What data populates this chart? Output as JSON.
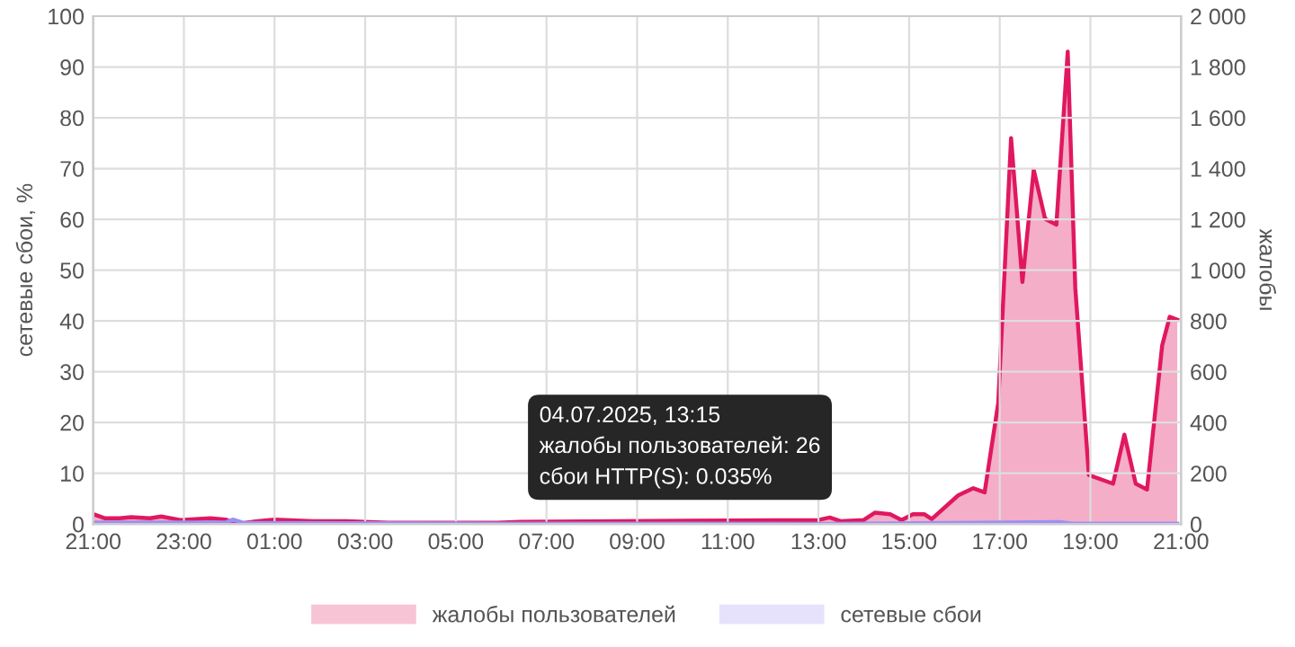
{
  "chart_data": {
    "type": "area",
    "ylabel": "сетевые сбои, %",
    "y2label": "жалобы",
    "xlim": [
      "2025-07-03T21:00",
      "2025-07-04T21:00"
    ],
    "xticks": [
      {
        "value": "2025-07-03T21:00",
        "label": "21:00"
      },
      {
        "value": "2025-07-03T23:00",
        "label": "23:00"
      },
      {
        "value": "2025-07-04T01:00",
        "label": "01:00"
      },
      {
        "value": "2025-07-04T03:00",
        "label": "03:00"
      },
      {
        "value": "2025-07-04T05:00",
        "label": "05:00"
      },
      {
        "value": "2025-07-04T07:00",
        "label": "07:00"
      },
      {
        "value": "2025-07-04T09:00",
        "label": "09:00"
      },
      {
        "value": "2025-07-04T11:00",
        "label": "11:00"
      },
      {
        "value": "2025-07-04T13:00",
        "label": "13:00"
      },
      {
        "value": "2025-07-04T15:00",
        "label": "15:00"
      },
      {
        "value": "2025-07-04T17:00",
        "label": "17:00"
      },
      {
        "value": "2025-07-04T19:00",
        "label": "19:00"
      },
      {
        "value": "2025-07-04T21:00",
        "label": "21:00"
      }
    ],
    "ylim": [
      0,
      100
    ],
    "yticks": [
      0,
      10,
      20,
      30,
      40,
      50,
      60,
      70,
      80,
      90,
      100
    ],
    "y2lim": [
      0,
      2000
    ],
    "y2ticks": [
      0,
      200,
      400,
      600,
      800,
      {
        "value": 1000,
        "label": "1 000"
      },
      {
        "value": 1200,
        "label": "1 200"
      },
      {
        "value": 1400,
        "label": "1 400"
      },
      {
        "value": 1600,
        "label": "1 600"
      },
      {
        "value": 1800,
        "label": "1 800"
      },
      {
        "value": 2000,
        "label": "2 000"
      }
    ],
    "grid": true,
    "legend": "bottom",
    "series": [
      {
        "name": "жалобы пользователей",
        "color": "#e0185f",
        "axis": "y2",
        "x": [
          "2025-07-03T21:00",
          "2025-07-03T21:15",
          "2025-07-03T21:35",
          "2025-07-03T21:50",
          "2025-07-03T22:15",
          "2025-07-03T22:30",
          "2025-07-03T22:55",
          "2025-07-03T23:35",
          "2025-07-03T23:55",
          "2025-07-04T00:10",
          "2025-07-04T00:35",
          "2025-07-04T01:00",
          "2025-07-04T01:50",
          "2025-07-04T02:35",
          "2025-07-04T03:30",
          "2025-07-04T04:10",
          "2025-07-04T05:00",
          "2025-07-04T05:55",
          "2025-07-04T06:25",
          "2025-07-04T13:00",
          "2025-07-04T13:15",
          "2025-07-04T13:30",
          "2025-07-04T14:00",
          "2025-07-04T14:15",
          "2025-07-04T14:35",
          "2025-07-04T14:50",
          "2025-07-04T15:05",
          "2025-07-04T15:20",
          "2025-07-04T15:30",
          "2025-07-04T16:05",
          "2025-07-04T16:25",
          "2025-07-04T16:40",
          "2025-07-04T16:58",
          "2025-07-04T17:15",
          "2025-07-04T17:30",
          "2025-07-04T17:45",
          "2025-07-04T18:00",
          "2025-07-04T18:15",
          "2025-07-04T18:30",
          "2025-07-04T18:40",
          "2025-07-04T18:58",
          "2025-07-04T19:30",
          "2025-07-04T19:45",
          "2025-07-04T20:00",
          "2025-07-04T20:15",
          "2025-07-04T20:35",
          "2025-07-04T20:45",
          "2025-07-04T20:55"
        ],
        "values": [
          39,
          23,
          23,
          27,
          23,
          30,
          16,
          23,
          18,
          0,
          11,
          18,
          11,
          11,
          5,
          5,
          5,
          5,
          9,
          16,
          26,
          11,
          16,
          45,
          39,
          16,
          39,
          39,
          20,
          113,
          141,
          125,
          476,
          1520,
          953,
          1395,
          1202,
          1179,
          1860,
          930,
          193,
          159,
          352,
          159,
          136,
          703,
          816,
          805
        ]
      },
      {
        "name": "сетевые сбои",
        "color": "#9d8ff7",
        "x": [
          "2025-07-03T21:00",
          "2025-07-03T23:55",
          "2025-07-04T00:05",
          "2025-07-04T00:20",
          "2025-07-04T06:00",
          "2025-07-04T13:15",
          "2025-07-04T18:20",
          "2025-07-04T18:35",
          "2025-07-04T20:55"
        ],
        "values": [
          0.3,
          0.3,
          0.9,
          0.2,
          0.1,
          0.035,
          0.4,
          0.1,
          0.1
        ]
      }
    ],
    "annotations": [
      "04.07.2025, 13:15",
      "жалобы пользователей: 26",
      "сбои HTTP(S): 0.035%"
    ]
  }
}
